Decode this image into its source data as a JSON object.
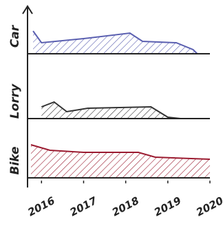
{
  "chart_data": {
    "type": "ridgeline",
    "xlim": [
      2015.75,
      2020
    ],
    "xticks": [
      2016,
      2017,
      2018,
      2019,
      2020
    ],
    "ylim": [
      0,
      5
    ],
    "series": [
      {
        "name": "Car",
        "color": "#5a5fb0",
        "x": [
          2015.8,
          2016.0,
          2017.0,
          2018.1,
          2018.4,
          2019.2,
          2019.6,
          2019.7
        ],
        "values": [
          3.3,
          1.6,
          2.2,
          3.0,
          1.8,
          1.6,
          0.6,
          0
        ]
      },
      {
        "name": "Lorry",
        "color": "#333333",
        "x": [
          2016.0,
          2016.3,
          2016.6,
          2017.1,
          2018.6,
          2019.0,
          2019.3
        ],
        "values": [
          1.7,
          2.4,
          1.0,
          1.5,
          1.7,
          0.2,
          0
        ]
      },
      {
        "name": "Bike",
        "color": "#9b1b30",
        "x": [
          2015.75,
          2016.2,
          2017.0,
          2018.3,
          2018.7,
          2020.0
        ],
        "values": [
          4.8,
          4.0,
          3.7,
          3.7,
          3.0,
          2.7
        ]
      }
    ]
  }
}
